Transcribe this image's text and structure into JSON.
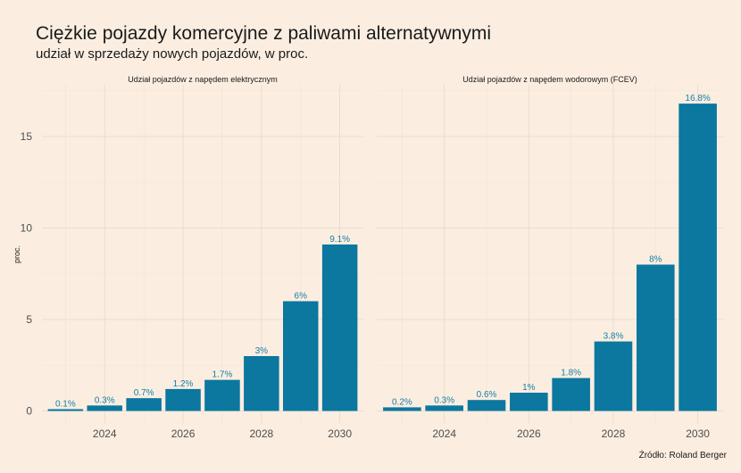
{
  "title": "Ciężkie pojazdy komercyjne z paliwami alternatywnymi",
  "subtitle": "udział w sprzedaży nowych pojazdów, w proc.",
  "caption": "Źródło:  Roland Berger",
  "colors": {
    "background": "#fbeee1",
    "bar": "#0c779f",
    "label": "#167fa6"
  },
  "chart_data": {
    "type": "bar",
    "ylabel": "proc.",
    "ylim": [
      0,
      17.7
    ],
    "yticks": [
      0,
      5,
      10,
      15
    ],
    "xticks": [
      2024,
      2026,
      2028,
      2030
    ],
    "xlim": [
      2022.4,
      2030.6
    ],
    "grid": true,
    "facets": [
      {
        "title": "Udział pojazdów z napędem elektrycznym",
        "x": [
          2023,
          2024,
          2025,
          2026,
          2027,
          2028,
          2029,
          2030
        ],
        "values": [
          0.1,
          0.3,
          0.7,
          1.2,
          1.7,
          3,
          6,
          9.1
        ],
        "labels": [
          "0.1%",
          "0.3%",
          "0.7%",
          "1.2%",
          "1.7%",
          "3%",
          "6%",
          "9.1%"
        ]
      },
      {
        "title": "Udział pojazdów z napędem wodorowym (FCEV)",
        "x": [
          2023,
          2024,
          2025,
          2026,
          2027,
          2028,
          2029,
          2030
        ],
        "values": [
          0.2,
          0.3,
          0.6,
          1,
          1.8,
          3.8,
          8,
          16.8
        ],
        "labels": [
          "0.2%",
          "0.3%",
          "0.6%",
          "1%",
          "1.8%",
          "3.8%",
          "8%",
          "16.8%"
        ]
      }
    ]
  }
}
